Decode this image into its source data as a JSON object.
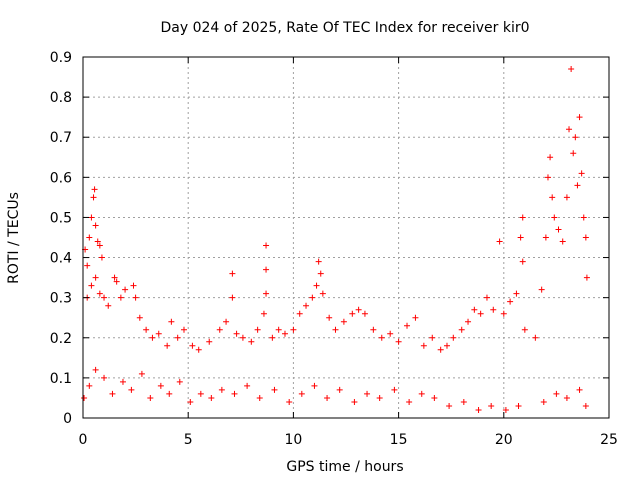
{
  "chart_data": {
    "type": "scatter",
    "title": "Day 024 of 2025, Rate Of TEC Index for receiver kir0",
    "xlabel": "GPS time / hours",
    "ylabel": "ROTI / TECUs",
    "xlim": [
      0,
      25
    ],
    "ylim": [
      0,
      0.9
    ],
    "x_ticks": [
      0,
      5,
      10,
      15,
      20,
      25
    ],
    "y_ticks": [
      0,
      0.1,
      0.2,
      0.3,
      0.4,
      0.5,
      0.6,
      0.7,
      0.8,
      0.9
    ],
    "grid": true,
    "marker": "plus",
    "color": "#ff0000",
    "series": [
      {
        "name": "",
        "points": [
          [
            0.1,
            0.42
          ],
          [
            0.2,
            0.38
          ],
          [
            0.3,
            0.45
          ],
          [
            0.4,
            0.5
          ],
          [
            0.5,
            0.55
          ],
          [
            0.55,
            0.57
          ],
          [
            0.6,
            0.48
          ],
          [
            0.7,
            0.44
          ],
          [
            0.8,
            0.43
          ],
          [
            0.9,
            0.4
          ],
          [
            0.2,
            0.3
          ],
          [
            0.4,
            0.33
          ],
          [
            0.6,
            0.35
          ],
          [
            0.8,
            0.31
          ],
          [
            1.0,
            0.3
          ],
          [
            1.2,
            0.28
          ],
          [
            1.5,
            0.35
          ],
          [
            1.6,
            0.34
          ],
          [
            1.8,
            0.3
          ],
          [
            2.0,
            0.32
          ],
          [
            2.4,
            0.33
          ],
          [
            2.5,
            0.3
          ],
          [
            2.7,
            0.25
          ],
          [
            3.0,
            0.22
          ],
          [
            3.3,
            0.2
          ],
          [
            3.6,
            0.21
          ],
          [
            4.0,
            0.18
          ],
          [
            4.2,
            0.24
          ],
          [
            4.5,
            0.2
          ],
          [
            4.8,
            0.22
          ],
          [
            5.2,
            0.18
          ],
          [
            5.5,
            0.17
          ],
          [
            6.0,
            0.19
          ],
          [
            6.5,
            0.22
          ],
          [
            6.8,
            0.24
          ],
          [
            7.1,
            0.36
          ],
          [
            7.1,
            0.3
          ],
          [
            7.3,
            0.21
          ],
          [
            7.6,
            0.2
          ],
          [
            8.0,
            0.19
          ],
          [
            8.3,
            0.22
          ],
          [
            8.6,
            0.26
          ],
          [
            8.7,
            0.43
          ],
          [
            8.7,
            0.37
          ],
          [
            8.7,
            0.31
          ],
          [
            9.0,
            0.2
          ],
          [
            9.3,
            0.22
          ],
          [
            9.6,
            0.21
          ],
          [
            10.0,
            0.22
          ],
          [
            10.3,
            0.26
          ],
          [
            10.6,
            0.28
          ],
          [
            10.9,
            0.3
          ],
          [
            11.1,
            0.33
          ],
          [
            11.2,
            0.39
          ],
          [
            11.3,
            0.36
          ],
          [
            11.4,
            0.31
          ],
          [
            11.7,
            0.25
          ],
          [
            12.0,
            0.22
          ],
          [
            12.4,
            0.24
          ],
          [
            12.8,
            0.26
          ],
          [
            13.1,
            0.27
          ],
          [
            13.4,
            0.26
          ],
          [
            13.8,
            0.22
          ],
          [
            14.2,
            0.2
          ],
          [
            14.6,
            0.21
          ],
          [
            15.0,
            0.19
          ],
          [
            15.4,
            0.23
          ],
          [
            15.8,
            0.25
          ],
          [
            16.2,
            0.18
          ],
          [
            16.6,
            0.2
          ],
          [
            17.0,
            0.17
          ],
          [
            17.3,
            0.18
          ],
          [
            17.6,
            0.2
          ],
          [
            18.0,
            0.22
          ],
          [
            18.3,
            0.24
          ],
          [
            18.6,
            0.27
          ],
          [
            18.9,
            0.26
          ],
          [
            19.2,
            0.3
          ],
          [
            19.5,
            0.27
          ],
          [
            19.8,
            0.44
          ],
          [
            20.0,
            0.26
          ],
          [
            20.3,
            0.29
          ],
          [
            20.6,
            0.31
          ],
          [
            20.8,
            0.45
          ],
          [
            20.9,
            0.5
          ],
          [
            20.9,
            0.39
          ],
          [
            21.0,
            0.22
          ],
          [
            21.5,
            0.2
          ],
          [
            21.8,
            0.32
          ],
          [
            22.0,
            0.45
          ],
          [
            22.1,
            0.6
          ],
          [
            22.2,
            0.65
          ],
          [
            22.3,
            0.55
          ],
          [
            22.4,
            0.5
          ],
          [
            22.6,
            0.47
          ],
          [
            22.8,
            0.44
          ],
          [
            23.0,
            0.55
          ],
          [
            23.1,
            0.72
          ],
          [
            23.2,
            0.87
          ],
          [
            23.3,
            0.66
          ],
          [
            23.4,
            0.7
          ],
          [
            23.5,
            0.58
          ],
          [
            23.6,
            0.75
          ],
          [
            23.7,
            0.61
          ],
          [
            23.8,
            0.5
          ],
          [
            23.9,
            0.45
          ],
          [
            23.95,
            0.35
          ],
          [
            0.05,
            0.05
          ],
          [
            0.3,
            0.08
          ],
          [
            0.6,
            0.12
          ],
          [
            1.0,
            0.1
          ],
          [
            1.4,
            0.06
          ],
          [
            1.9,
            0.09
          ],
          [
            2.3,
            0.07
          ],
          [
            2.8,
            0.11
          ],
          [
            3.2,
            0.05
          ],
          [
            3.7,
            0.08
          ],
          [
            4.1,
            0.06
          ],
          [
            4.6,
            0.09
          ],
          [
            5.1,
            0.04
          ],
          [
            5.6,
            0.06
          ],
          [
            6.1,
            0.05
          ],
          [
            6.6,
            0.07
          ],
          [
            7.2,
            0.06
          ],
          [
            7.8,
            0.08
          ],
          [
            8.4,
            0.05
          ],
          [
            9.1,
            0.07
          ],
          [
            9.8,
            0.04
          ],
          [
            10.4,
            0.06
          ],
          [
            11.0,
            0.08
          ],
          [
            11.6,
            0.05
          ],
          [
            12.2,
            0.07
          ],
          [
            12.9,
            0.04
          ],
          [
            13.5,
            0.06
          ],
          [
            14.1,
            0.05
          ],
          [
            14.8,
            0.07
          ],
          [
            15.5,
            0.04
          ],
          [
            16.1,
            0.06
          ],
          [
            16.7,
            0.05
          ],
          [
            17.4,
            0.03
          ],
          [
            18.1,
            0.04
          ],
          [
            18.8,
            0.02
          ],
          [
            19.4,
            0.03
          ],
          [
            20.1,
            0.02
          ],
          [
            20.7,
            0.03
          ],
          [
            21.9,
            0.04
          ],
          [
            22.5,
            0.06
          ],
          [
            23.0,
            0.05
          ],
          [
            23.6,
            0.07
          ],
          [
            23.9,
            0.03
          ]
        ]
      }
    ]
  }
}
